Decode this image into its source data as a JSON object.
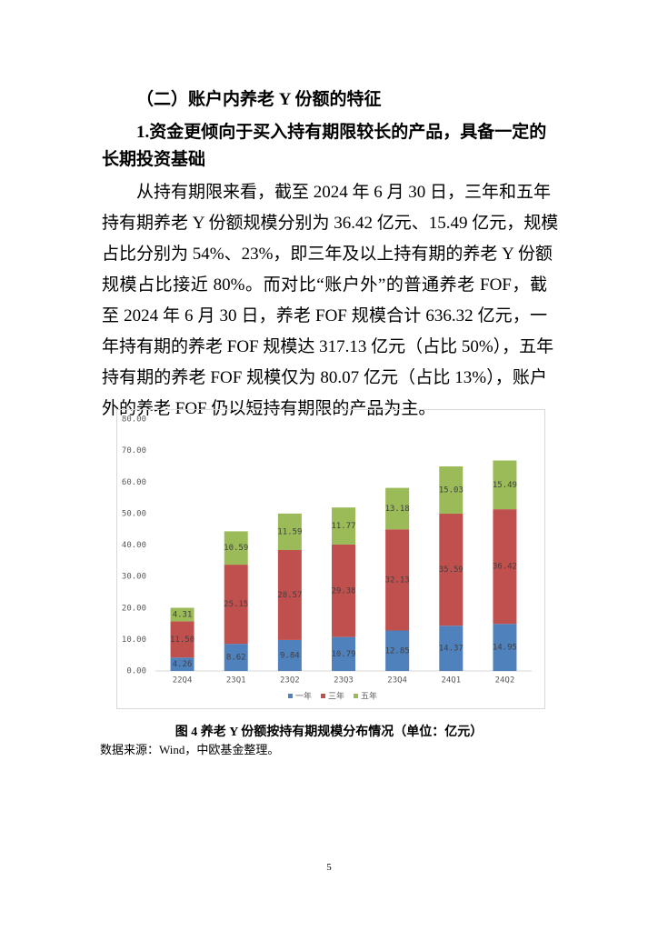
{
  "section_title": "（二）账户内养老 Y 份额的特征",
  "subsection_title_lines": [
    "1.资金更倾向于买入持有期限较长的产品，具备一定的",
    "长期投资基础"
  ],
  "paragraph_lines": [
    "从持有期限来看，截至 2024 年 6 月 30 日，三年和五年",
    "持有期养老 Y 份额规模分别为 36.42 亿元、15.49 亿元，规模",
    "占比分别为 54%、23%，即三年及以上持有期的养老 Y 份额",
    "规模占比接近 80%。而对比“账户外”的普通养老 FOF，截",
    "至 2024 年 6 月 30 日，养老 FOF 规模合计 636.32 亿元，一",
    "年持有期的养老 FOF 规模达 317.13 亿元（占比 50%），五年",
    "持有期的养老 FOF 规模仅为 80.07 亿元（占比 13%），账户",
    "外的养老 FOF 仍以短持有期限的产品为主。"
  ],
  "chart_data": {
    "type": "stacked_bar",
    "categories": [
      "22Q4",
      "23Q1",
      "23Q2",
      "23Q3",
      "23Q4",
      "24Q1",
      "24Q2"
    ],
    "series": [
      {
        "name": "一年",
        "color": "#4f81bd",
        "values": [
          4.26,
          8.62,
          9.84,
          10.79,
          12.85,
          14.37,
          14.95
        ],
        "value_labels": [
          "4.26",
          "8.62",
          "9.84",
          "10.79",
          "12.85",
          "14.37",
          "14.95"
        ]
      },
      {
        "name": "三年",
        "color": "#c0504d",
        "values": [
          11.5,
          25.15,
          28.57,
          29.38,
          32.13,
          35.59,
          36.42
        ],
        "value_labels": [
          "11.50",
          "25.15",
          "28.57",
          "29.38",
          "32.13",
          "35.59",
          "36.42"
        ]
      },
      {
        "name": "五年",
        "color": "#9bbb59",
        "values": [
          4.31,
          10.59,
          11.59,
          11.77,
          13.18,
          15.03,
          15.49
        ],
        "value_labels": [
          "4.31",
          "10.59",
          "11.59",
          "11.77",
          "13.18",
          "15.03",
          "15.49"
        ]
      }
    ],
    "ylim": [
      0,
      80
    ],
    "yticks": [
      {
        "value": 0,
        "label": "0.00"
      },
      {
        "value": 10,
        "label": "10.00"
      },
      {
        "value": 20,
        "label": "20.00"
      },
      {
        "value": 30,
        "label": "30.00"
      },
      {
        "value": 40,
        "label": "40.00"
      },
      {
        "value": 50,
        "label": "50.00"
      },
      {
        "value": 60,
        "label": "60.00"
      },
      {
        "value": 70,
        "label": "70.00"
      },
      {
        "value": 80,
        "label": "80.00"
      }
    ]
  },
  "caption": "图 4  养老 Y 份额按持有期规模分布情况（单位：亿元）",
  "source": "数据来源：Wind，中欧基金整理。",
  "page_number": "5"
}
